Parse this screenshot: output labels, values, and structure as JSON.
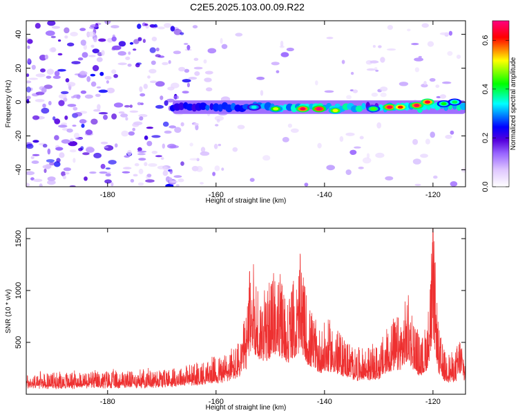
{
  "title": "C2E5.2025.103.00.09.R22",
  "chart_data": [
    {
      "type": "heatmap",
      "xlabel": "Height of straight line (km)",
      "ylabel": "Frequency (Hz)",
      "xlim": [
        -195,
        -114
      ],
      "ylim": [
        -50,
        48
      ],
      "xticks": [
        -180,
        -160,
        -140,
        -120
      ],
      "yticks": [
        -40,
        -20,
        0,
        20,
        40
      ],
      "colorbar": {
        "label": "Normalized spectral amplitude",
        "range": [
          0.0,
          0.68
        ],
        "ticks": [
          0.0,
          0.2,
          0.4,
          0.6
        ],
        "colors": [
          "#ffffff",
          "#e0c8ff",
          "#9966ff",
          "#5500dd",
          "#0000ff",
          "#00ffff",
          "#00ff00",
          "#ffff00",
          "#ff0000",
          "#ff0080"
        ]
      },
      "signal_band": {
        "center_frequency": -3,
        "start_height": -168,
        "end_height": -114,
        "peaks": [
          {
            "x": -141,
            "y": -4,
            "amp": 0.68
          },
          {
            "x": -144,
            "y": -4,
            "amp": 0.66
          },
          {
            "x": -128,
            "y": -3,
            "amp": 0.66
          },
          {
            "x": -123,
            "y": -2,
            "amp": 0.66
          },
          {
            "x": -121,
            "y": 0,
            "amp": 0.64
          },
          {
            "x": -126,
            "y": -3,
            "amp": 0.6
          },
          {
            "x": -138,
            "y": -5,
            "amp": 0.52
          },
          {
            "x": -149,
            "y": -4,
            "amp": 0.5
          },
          {
            "x": -131,
            "y": -4,
            "amp": 0.45
          },
          {
            "x": -118,
            "y": -1,
            "amp": 0.42
          },
          {
            "x": -153,
            "y": -3,
            "amp": 0.35
          },
          {
            "x": -116,
            "y": 0,
            "amp": 0.4
          }
        ]
      }
    },
    {
      "type": "line",
      "xlabel": "Height of straight line (km)",
      "ylabel": "SNR (10 * v/v)",
      "xlim": [
        -195,
        -114
      ],
      "ylim": [
        0,
        1600
      ],
      "xticks": [
        -180,
        -160,
        -140,
        -120
      ],
      "yticks": [
        500,
        1000,
        1500
      ],
      "color": "#ee3030",
      "series": [
        {
          "x": [
            -195,
            -185,
            -175,
            -168,
            -163,
            -159,
            -156,
            -154.5,
            -153.5,
            -152,
            -150,
            -149,
            -147,
            -145,
            -144.5,
            -143,
            -141,
            -139,
            -136,
            -134,
            -132,
            -130,
            -128,
            -126,
            -124.5,
            -123,
            -122,
            -121,
            -120.5,
            -120,
            -119.5,
            -119,
            -118,
            -116,
            -115,
            -114
          ],
          "values": [
            180,
            200,
            210,
            240,
            280,
            350,
            450,
            700,
            1300,
            900,
            1000,
            1150,
            900,
            1050,
            1250,
            800,
            600,
            650,
            500,
            400,
            420,
            430,
            650,
            700,
            900,
            600,
            500,
            700,
            1100,
            1550,
            1100,
            600,
            400,
            350,
            550,
            350
          ]
        }
      ]
    }
  ]
}
